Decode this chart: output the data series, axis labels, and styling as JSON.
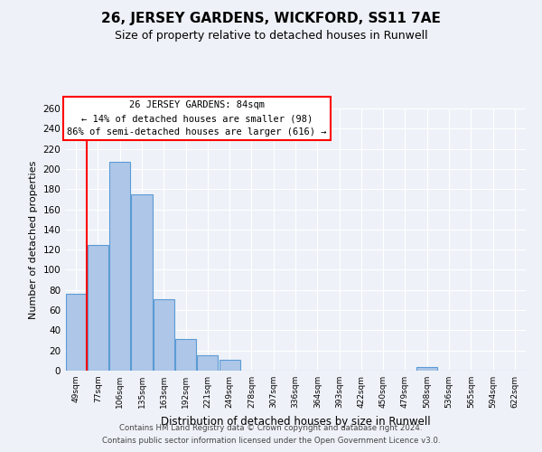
{
  "title": "26, JERSEY GARDENS, WICKFORD, SS11 7AE",
  "subtitle": "Size of property relative to detached houses in Runwell",
  "xlabel": "Distribution of detached houses by size in Runwell",
  "ylabel": "Number of detached properties",
  "bin_labels": [
    "49sqm",
    "77sqm",
    "106sqm",
    "135sqm",
    "163sqm",
    "192sqm",
    "221sqm",
    "249sqm",
    "278sqm",
    "307sqm",
    "336sqm",
    "364sqm",
    "393sqm",
    "422sqm",
    "450sqm",
    "479sqm",
    "508sqm",
    "536sqm",
    "565sqm",
    "594sqm",
    "622sqm"
  ],
  "bar_values": [
    76,
    125,
    207,
    175,
    71,
    31,
    15,
    11,
    0,
    0,
    0,
    0,
    0,
    0,
    0,
    0,
    4,
    0,
    0,
    0,
    0
  ],
  "bar_color": "#aec6e8",
  "bar_edge_color": "#5b9bd5",
  "annotation_title": "26 JERSEY GARDENS: 84sqm",
  "annotation_line1": "← 14% of detached houses are smaller (98)",
  "annotation_line2": "86% of semi-detached houses are larger (616) →",
  "ylim": [
    0,
    260
  ],
  "yticks": [
    0,
    20,
    40,
    60,
    80,
    100,
    120,
    140,
    160,
    180,
    200,
    220,
    240,
    260
  ],
  "footer1": "Contains HM Land Registry data © Crown copyright and database right 2024.",
  "footer2": "Contains public sector information licensed under the Open Government Licence v3.0.",
  "bg_color": "#eef2f8",
  "grid_color": "#ffffff"
}
